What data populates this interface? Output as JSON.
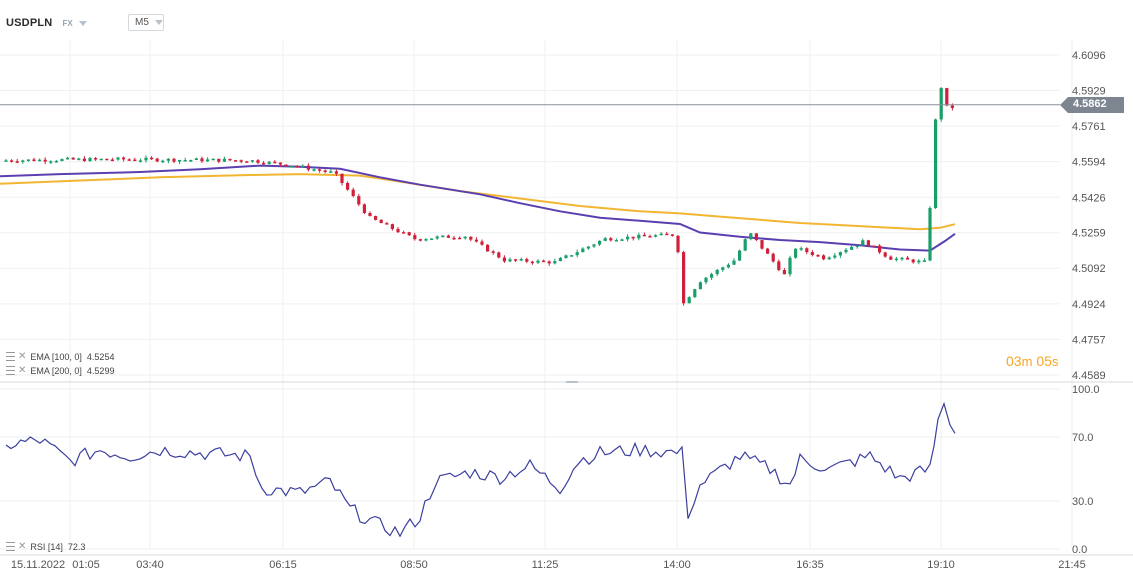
{
  "header": {
    "symbol": "USDPLN",
    "market": "FX",
    "timeframe": "M5"
  },
  "indicators": [
    {
      "label": "EMA [100,  0]",
      "value": "4.5254",
      "color": "#5b3fb0"
    },
    {
      "label": "EMA [200,  0]",
      "value": "4.5299",
      "color": "#f2b632"
    }
  ],
  "rsi_label": {
    "label": "RSI [14]",
    "value": "72.3"
  },
  "timer": {
    "minutes": "03",
    "minutes_unit": "m",
    "seconds": "05",
    "seconds_unit": "s"
  },
  "last_price": "4.5862",
  "colors": {
    "up": "#1a9e6a",
    "down": "#d0203a",
    "ema100": "#5b3fb0",
    "ema200": "#f2b632",
    "rsi": "#3b3f9e",
    "accent": "#f5a623"
  },
  "chart_data": [
    {
      "type": "candlestick",
      "ylim": [
        4.4589,
        4.6096
      ],
      "y_ticks": [
        "4.6096",
        "4.5929",
        "4.5761",
        "4.5594",
        "4.5426",
        "4.5259",
        "4.5092",
        "4.4924",
        "4.4757",
        "4.4589"
      ],
      "x_ticks": [
        "15.11.2022",
        "01:05",
        "03:40",
        "06:15",
        "08:50",
        "11:25",
        "14:00",
        "16:35",
        "19:10",
        "21:45"
      ],
      "last_price": 4.5862,
      "series": [
        {
          "name": "EMA [100,  0]",
          "color": "#5b3fb0",
          "values": [
            [
              0,
              4.5525
            ],
            [
              60,
              4.5535
            ],
            [
              140,
              4.5545
            ],
            [
              200,
              4.5558
            ],
            [
              260,
              4.5575
            ],
            [
              300,
              4.557
            ],
            [
              340,
              4.556
            ],
            [
              380,
              4.552
            ],
            [
              420,
              4.5485
            ],
            [
              480,
              4.544
            ],
            [
              520,
              4.5398
            ],
            [
              560,
              4.536
            ],
            [
              600,
              4.533
            ],
            [
              640,
              4.5315
            ],
            [
              680,
              4.53
            ],
            [
              700,
              4.526
            ],
            [
              740,
              4.524
            ],
            [
              780,
              4.5225
            ],
            [
              820,
              4.5215
            ],
            [
              860,
              4.52
            ],
            [
              900,
              4.518
            ],
            [
              930,
              4.5175
            ],
            [
              945,
              4.522
            ],
            [
              955,
              4.5254
            ]
          ]
        },
        {
          "name": "EMA [200,  0]",
          "color": "#f2b632",
          "values": [
            [
              0,
              4.549
            ],
            [
              80,
              4.5505
            ],
            [
              160,
              4.552
            ],
            [
              240,
              4.553
            ],
            [
              300,
              4.5535
            ],
            [
              360,
              4.5528
            ],
            [
              400,
              4.55
            ],
            [
              460,
              4.5455
            ],
            [
              520,
              4.542
            ],
            [
              580,
              4.5385
            ],
            [
              640,
              4.536
            ],
            [
              680,
              4.535
            ],
            [
              720,
              4.5335
            ],
            [
              760,
              4.532
            ],
            [
              800,
              4.5305
            ],
            [
              860,
              4.529
            ],
            [
              920,
              4.5275
            ],
            [
              940,
              4.5282
            ],
            [
              955,
              4.5299
            ]
          ]
        }
      ]
    },
    {
      "type": "line",
      "name": "RSI [14]",
      "ylim": [
        0,
        100
      ],
      "y_ticks": [
        "100.0",
        "70.0",
        "30.0",
        "0.0"
      ],
      "last_value": 72.3
    }
  ]
}
